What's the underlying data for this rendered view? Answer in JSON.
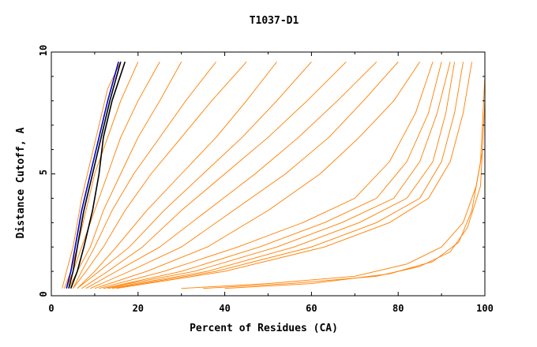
{
  "chart_data": {
    "type": "line",
    "title": "T1037-D1",
    "xlabel": "Percent of Residues (CA)",
    "ylabel": "Distance Cutoff, A",
    "xlim": [
      0,
      100
    ],
    "ylim": [
      0,
      10
    ],
    "x_ticks": [
      "0",
      "20",
      "40",
      "60",
      "80",
      "100"
    ],
    "y_ticks": [
      "0",
      "5",
      "10"
    ],
    "grid": false,
    "legend": "none",
    "colors": {
      "models": "#ff7f00",
      "highlight_blue": "#0000cc",
      "highlight_black": "#000000"
    },
    "series": [
      {
        "group": "steep",
        "x": [
          2.5,
          3.5,
          5,
          7,
          9,
          11,
          13,
          16
        ],
        "y": [
          0.3,
          1,
          2,
          4,
          5.5,
          7,
          8.5,
          9.6
        ]
      },
      {
        "group": "steep",
        "x": [
          3,
          4.5,
          6,
          8,
          10,
          13,
          16,
          20
        ],
        "y": [
          0.3,
          1,
          2,
          3.5,
          5,
          6.5,
          8,
          9.6
        ]
      },
      {
        "group": "steep",
        "x": [
          3.5,
          5,
          7,
          10,
          13,
          16,
          20,
          25
        ],
        "y": [
          0.3,
          1,
          2,
          3.5,
          5,
          6.5,
          8,
          9.6
        ]
      },
      {
        "group": "steep",
        "x": [
          4,
          6,
          9,
          12,
          16,
          20,
          25,
          30
        ],
        "y": [
          0.3,
          1,
          2,
          3.5,
          5,
          6.5,
          8,
          9.6
        ]
      },
      {
        "group": "steep",
        "x": [
          5,
          7,
          10,
          14,
          19,
          25,
          31,
          38
        ],
        "y": [
          0.3,
          1,
          2,
          3.5,
          5,
          6.5,
          8,
          9.6
        ]
      },
      {
        "group": "steep",
        "x": [
          5,
          8,
          12,
          17,
          23,
          30,
          37,
          45
        ],
        "y": [
          0.3,
          1,
          2,
          3.5,
          5,
          6.5,
          8,
          9.6
        ]
      },
      {
        "group": "mid",
        "x": [
          6,
          10,
          15,
          22,
          30,
          38,
          45,
          52
        ],
        "y": [
          0.3,
          1,
          2,
          3.5,
          5,
          6.5,
          8,
          9.6
        ]
      },
      {
        "group": "mid",
        "x": [
          6,
          11,
          18,
          26,
          35,
          44,
          52,
          60
        ],
        "y": [
          0.3,
          1,
          2,
          3.5,
          5,
          6.5,
          8,
          9.6
        ]
      },
      {
        "group": "mid",
        "x": [
          7,
          13,
          21,
          30,
          40,
          50,
          59,
          68
        ],
        "y": [
          0.3,
          1,
          2,
          3.5,
          5,
          6.5,
          8,
          9.6
        ]
      },
      {
        "group": "mid",
        "x": [
          8,
          15,
          25,
          36,
          47,
          57,
          66,
          75
        ],
        "y": [
          0.3,
          1,
          2,
          3.5,
          5,
          6.5,
          8,
          9.6
        ]
      },
      {
        "group": "mid",
        "x": [
          9,
          18,
          30,
          42,
          54,
          64,
          72,
          80
        ],
        "y": [
          0.3,
          1,
          2,
          3.5,
          5,
          6.5,
          8,
          9.6
        ]
      },
      {
        "group": "mid",
        "x": [
          10,
          22,
          36,
          50,
          62,
          71,
          79,
          85
        ],
        "y": [
          0.3,
          1,
          2,
          3.5,
          5,
          6.5,
          8,
          9.6
        ]
      },
      {
        "group": "shallow",
        "x": [
          11,
          26,
          43,
          58,
          70,
          78,
          84,
          88
        ],
        "y": [
          0.3,
          1,
          2,
          3,
          4,
          5.5,
          7.5,
          9.6
        ]
      },
      {
        "group": "shallow",
        "x": [
          12,
          30,
          48,
          63,
          75,
          82,
          87,
          90
        ],
        "y": [
          0.3,
          1,
          2,
          3,
          4,
          5.5,
          7.5,
          9.6
        ]
      },
      {
        "group": "shallow",
        "x": [
          12,
          33,
          52,
          67,
          79,
          85,
          89,
          92
        ],
        "y": [
          0.3,
          1,
          2,
          3,
          4,
          5.5,
          7.5,
          9.6
        ]
      },
      {
        "group": "shallow",
        "x": [
          13,
          36,
          56,
          71,
          82,
          88,
          91,
          93
        ],
        "y": [
          0.3,
          1,
          2,
          3,
          4,
          5.5,
          7.5,
          9.6
        ]
      },
      {
        "group": "shallow",
        "x": [
          14,
          38,
          60,
          75,
          85,
          90,
          93,
          95
        ],
        "y": [
          0.3,
          1,
          2,
          3,
          4,
          5.5,
          7.5,
          9.6
        ]
      },
      {
        "group": "shallow",
        "x": [
          15,
          40,
          63,
          78,
          87,
          92,
          95,
          97
        ],
        "y": [
          0.3,
          1,
          2,
          3,
          4,
          5.5,
          7.5,
          9.6
        ]
      },
      {
        "group": "flat",
        "x": [
          30,
          50,
          70,
          82,
          90,
          95,
          98,
          99.5
        ],
        "y": [
          0.3,
          0.5,
          0.8,
          1.3,
          2,
          3,
          4.5,
          6
        ]
      },
      {
        "group": "flat",
        "x": [
          35,
          55,
          75,
          85,
          92,
          96,
          99,
          100
        ],
        "y": [
          0.3,
          0.5,
          0.8,
          1.2,
          1.8,
          2.8,
          4.5,
          8
        ]
      },
      {
        "group": "flat",
        "x": [
          40,
          60,
          78,
          88,
          94,
          97,
          99,
          100
        ],
        "y": [
          0.3,
          0.5,
          0.9,
          1.4,
          2.2,
          3.5,
          5.5,
          9
        ]
      },
      {
        "group": "highlight_blue",
        "x": [
          3.5,
          4.5,
          5.5,
          7,
          9,
          11,
          13,
          15.5
        ],
        "y": [
          0.3,
          1,
          2,
          3.5,
          5,
          6.5,
          8,
          9.6
        ]
      },
      {
        "group": "highlight_black",
        "x": [
          4,
          5,
          6,
          7.5,
          9.5,
          11.5,
          13.5,
          16
        ],
        "y": [
          0.3,
          1,
          2,
          3.5,
          5,
          6.5,
          8,
          9.6
        ]
      },
      {
        "group": "highlight_black",
        "x": [
          4.5,
          6,
          7.5,
          9.5,
          11,
          12,
          14,
          17
        ],
        "y": [
          0.3,
          1,
          2,
          3.5,
          5,
          6.5,
          8,
          9.6
        ]
      }
    ]
  }
}
